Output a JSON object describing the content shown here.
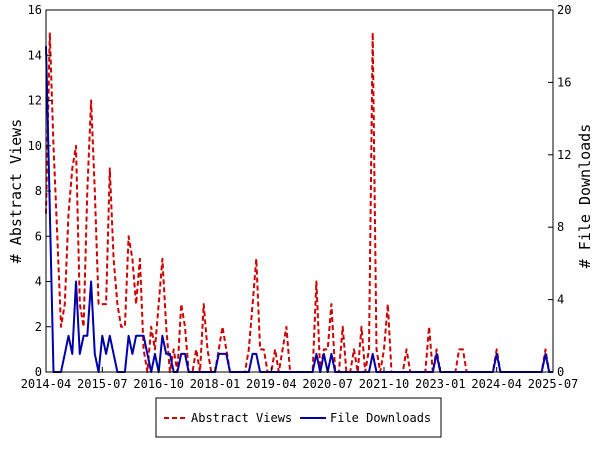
{
  "chart_data": {
    "type": "line",
    "ylabel_left": "# Abstract Views",
    "ylabel_right": "# File Downloads",
    "x_ticks": [
      "2014-04",
      "2015-07",
      "2016-10",
      "2018-01",
      "2019-04",
      "2020-07",
      "2021-10",
      "2023-01",
      "2024-04",
      "2025-07"
    ],
    "x_range": [
      "2014-04",
      "2025-07"
    ],
    "ylim_left": [
      0,
      16
    ],
    "ylim_right": [
      0,
      20
    ],
    "y_ticks_left": [
      0,
      2,
      4,
      6,
      8,
      10,
      12,
      14,
      16
    ],
    "y_ticks_right": [
      0,
      4,
      8,
      12,
      16,
      20
    ],
    "grid": false,
    "legend_position": "bottom-center",
    "series": [
      {
        "name": "Abstract Views",
        "axis": "left",
        "color": "#cc0000",
        "style": "dashed",
        "points": [
          [
            "2014-04",
            7
          ],
          [
            "2014-05",
            15
          ],
          [
            "2014-06",
            10
          ],
          [
            "2014-07",
            6
          ],
          [
            "2014-08",
            2
          ],
          [
            "2014-09",
            3
          ],
          [
            "2014-10",
            7
          ],
          [
            "2014-11",
            9
          ],
          [
            "2014-12",
            10
          ],
          [
            "2015-01",
            3
          ],
          [
            "2015-02",
            2
          ],
          [
            "2015-03",
            8
          ],
          [
            "2015-04",
            12
          ],
          [
            "2015-05",
            8
          ],
          [
            "2015-06",
            3
          ],
          [
            "2015-07",
            3
          ],
          [
            "2015-08",
            3
          ],
          [
            "2015-09",
            9
          ],
          [
            "2015-10",
            5
          ],
          [
            "2015-11",
            3
          ],
          [
            "2015-12",
            2
          ],
          [
            "2016-01",
            2
          ],
          [
            "2016-02",
            6
          ],
          [
            "2016-03",
            5
          ],
          [
            "2016-04",
            3
          ],
          [
            "2016-05",
            5
          ],
          [
            "2016-06",
            1
          ],
          [
            "2016-07",
            0
          ],
          [
            "2016-08",
            2
          ],
          [
            "2016-09",
            1
          ],
          [
            "2016-10",
            3
          ],
          [
            "2016-11",
            5
          ],
          [
            "2016-12",
            2
          ],
          [
            "2017-01",
            0
          ],
          [
            "2017-02",
            1
          ],
          [
            "2017-03",
            0
          ],
          [
            "2017-04",
            3
          ],
          [
            "2017-05",
            2
          ],
          [
            "2017-06",
            0
          ],
          [
            "2017-07",
            0
          ],
          [
            "2017-08",
            1
          ],
          [
            "2017-09",
            0
          ],
          [
            "2017-10",
            3
          ],
          [
            "2017-11",
            1
          ],
          [
            "2017-12",
            0
          ],
          [
            "2018-01",
            0
          ],
          [
            "2018-02",
            1
          ],
          [
            "2018-03",
            2
          ],
          [
            "2018-04",
            1
          ],
          [
            "2018-05",
            0
          ],
          [
            "2018-06",
            0
          ],
          [
            "2018-07",
            0
          ],
          [
            "2018-08",
            0
          ],
          [
            "2018-09",
            0
          ],
          [
            "2018-10",
            1
          ],
          [
            "2018-11",
            3
          ],
          [
            "2018-12",
            5
          ],
          [
            "2019-01",
            1
          ],
          [
            "2019-02",
            1
          ],
          [
            "2019-03",
            0
          ],
          [
            "2019-04",
            0
          ],
          [
            "2019-05",
            1
          ],
          [
            "2019-06",
            0
          ],
          [
            "2019-07",
            1
          ],
          [
            "2019-08",
            2
          ],
          [
            "2019-09",
            0
          ],
          [
            "2019-10",
            0
          ],
          [
            "2019-11",
            0
          ],
          [
            "2019-12",
            0
          ],
          [
            "2020-01",
            0
          ],
          [
            "2020-02",
            0
          ],
          [
            "2020-03",
            0
          ],
          [
            "2020-04",
            4
          ],
          [
            "2020-05",
            0
          ],
          [
            "2020-06",
            1
          ],
          [
            "2020-07",
            1
          ],
          [
            "2020-08",
            3
          ],
          [
            "2020-09",
            0
          ],
          [
            "2020-10",
            0
          ],
          [
            "2020-11",
            2
          ],
          [
            "2020-12",
            0
          ],
          [
            "2021-01",
            0
          ],
          [
            "2021-02",
            1
          ],
          [
            "2021-03",
            0
          ],
          [
            "2021-04",
            2
          ],
          [
            "2021-05",
            0
          ],
          [
            "2021-06",
            1
          ],
          [
            "2021-07",
            15
          ],
          [
            "2021-08",
            1
          ],
          [
            "2021-09",
            0
          ],
          [
            "2021-10",
            1
          ],
          [
            "2021-11",
            3
          ],
          [
            "2021-12",
            0
          ],
          [
            "2022-01",
            0
          ],
          [
            "2022-02",
            0
          ],
          [
            "2022-03",
            0
          ],
          [
            "2022-04",
            1
          ],
          [
            "2022-05",
            0
          ],
          [
            "2022-06",
            0
          ],
          [
            "2022-07",
            0
          ],
          [
            "2022-08",
            0
          ],
          [
            "2022-09",
            0
          ],
          [
            "2022-10",
            2
          ],
          [
            "2022-11",
            0
          ],
          [
            "2022-12",
            1
          ],
          [
            "2023-01",
            0
          ],
          [
            "2023-02",
            0
          ],
          [
            "2023-03",
            0
          ],
          [
            "2023-04",
            0
          ],
          [
            "2023-05",
            0
          ],
          [
            "2023-06",
            1
          ],
          [
            "2023-07",
            1
          ],
          [
            "2023-08",
            0
          ],
          [
            "2023-09",
            0
          ],
          [
            "2023-10",
            0
          ],
          [
            "2023-11",
            0
          ],
          [
            "2023-12",
            0
          ],
          [
            "2024-01",
            0
          ],
          [
            "2024-02",
            0
          ],
          [
            "2024-03",
            0
          ],
          [
            "2024-04",
            1
          ],
          [
            "2024-05",
            0
          ],
          [
            "2024-06",
            0
          ],
          [
            "2024-07",
            0
          ],
          [
            "2024-08",
            0
          ],
          [
            "2024-09",
            0
          ],
          [
            "2024-10",
            0
          ],
          [
            "2024-11",
            0
          ],
          [
            "2024-12",
            0
          ],
          [
            "2025-01",
            0
          ],
          [
            "2025-02",
            0
          ],
          [
            "2025-03",
            0
          ],
          [
            "2025-04",
            0
          ],
          [
            "2025-05",
            1
          ],
          [
            "2025-06",
            0
          ],
          [
            "2025-07",
            0
          ]
        ]
      },
      {
        "name": "File Downloads",
        "axis": "right",
        "color": "#0000aa",
        "style": "solid",
        "points": [
          [
            "2014-04",
            18
          ],
          [
            "2014-05",
            9
          ],
          [
            "2014-06",
            0
          ],
          [
            "2014-07",
            0
          ],
          [
            "2014-08",
            0
          ],
          [
            "2014-09",
            1
          ],
          [
            "2014-10",
            2
          ],
          [
            "2014-11",
            1
          ],
          [
            "2014-12",
            5
          ],
          [
            "2015-01",
            1
          ],
          [
            "2015-02",
            2
          ],
          [
            "2015-03",
            2
          ],
          [
            "2015-04",
            5
          ],
          [
            "2015-05",
            1
          ],
          [
            "2015-06",
            0
          ],
          [
            "2015-07",
            2
          ],
          [
            "2015-08",
            1
          ],
          [
            "2015-09",
            2
          ],
          [
            "2015-10",
            1
          ],
          [
            "2015-11",
            0
          ],
          [
            "2015-12",
            0
          ],
          [
            "2016-01",
            0
          ],
          [
            "2016-02",
            2
          ],
          [
            "2016-03",
            1
          ],
          [
            "2016-04",
            2
          ],
          [
            "2016-05",
            2
          ],
          [
            "2016-06",
            2
          ],
          [
            "2016-07",
            1
          ],
          [
            "2016-08",
            0
          ],
          [
            "2016-09",
            1
          ],
          [
            "2016-10",
            0
          ],
          [
            "2016-11",
            2
          ],
          [
            "2016-12",
            1
          ],
          [
            "2017-01",
            1
          ],
          [
            "2017-02",
            0
          ],
          [
            "2017-03",
            0
          ],
          [
            "2017-04",
            1
          ],
          [
            "2017-05",
            1
          ],
          [
            "2017-06",
            0
          ],
          [
            "2017-07",
            0
          ],
          [
            "2017-08",
            0
          ],
          [
            "2017-09",
            0
          ],
          [
            "2017-10",
            0
          ],
          [
            "2017-11",
            0
          ],
          [
            "2017-12",
            0
          ],
          [
            "2018-01",
            0
          ],
          [
            "2018-02",
            1
          ],
          [
            "2018-03",
            1
          ],
          [
            "2018-04",
            1
          ],
          [
            "2018-05",
            0
          ],
          [
            "2018-06",
            0
          ],
          [
            "2018-07",
            0
          ],
          [
            "2018-08",
            0
          ],
          [
            "2018-09",
            0
          ],
          [
            "2018-10",
            0
          ],
          [
            "2018-11",
            1
          ],
          [
            "2018-12",
            1
          ],
          [
            "2019-01",
            0
          ],
          [
            "2019-02",
            0
          ],
          [
            "2019-03",
            0
          ],
          [
            "2019-04",
            0
          ],
          [
            "2019-05",
            0
          ],
          [
            "2019-06",
            0
          ],
          [
            "2019-07",
            0
          ],
          [
            "2019-08",
            0
          ],
          [
            "2019-09",
            0
          ],
          [
            "2019-10",
            0
          ],
          [
            "2019-11",
            0
          ],
          [
            "2019-12",
            0
          ],
          [
            "2020-01",
            0
          ],
          [
            "2020-02",
            0
          ],
          [
            "2020-03",
            0
          ],
          [
            "2020-04",
            1
          ],
          [
            "2020-05",
            0
          ],
          [
            "2020-06",
            1
          ],
          [
            "2020-07",
            0
          ],
          [
            "2020-08",
            1
          ],
          [
            "2020-09",
            0
          ],
          [
            "2020-10",
            0
          ],
          [
            "2020-11",
            0
          ],
          [
            "2020-12",
            0
          ],
          [
            "2021-01",
            0
          ],
          [
            "2021-02",
            0
          ],
          [
            "2021-03",
            0
          ],
          [
            "2021-04",
            0
          ],
          [
            "2021-05",
            0
          ],
          [
            "2021-06",
            0
          ],
          [
            "2021-07",
            1
          ],
          [
            "2021-08",
            0
          ],
          [
            "2021-09",
            0
          ],
          [
            "2021-10",
            0
          ],
          [
            "2021-11",
            0
          ],
          [
            "2021-12",
            0
          ],
          [
            "2022-01",
            0
          ],
          [
            "2022-02",
            0
          ],
          [
            "2022-03",
            0
          ],
          [
            "2022-04",
            0
          ],
          [
            "2022-05",
            0
          ],
          [
            "2022-06",
            0
          ],
          [
            "2022-07",
            0
          ],
          [
            "2022-08",
            0
          ],
          [
            "2022-09",
            0
          ],
          [
            "2022-10",
            0
          ],
          [
            "2022-11",
            0
          ],
          [
            "2022-12",
            1
          ],
          [
            "2023-01",
            0
          ],
          [
            "2023-02",
            0
          ],
          [
            "2023-03",
            0
          ],
          [
            "2023-04",
            0
          ],
          [
            "2023-05",
            0
          ],
          [
            "2023-06",
            0
          ],
          [
            "2023-07",
            0
          ],
          [
            "2023-08",
            0
          ],
          [
            "2023-09",
            0
          ],
          [
            "2023-10",
            0
          ],
          [
            "2023-11",
            0
          ],
          [
            "2023-12",
            0
          ],
          [
            "2024-01",
            0
          ],
          [
            "2024-02",
            0
          ],
          [
            "2024-03",
            0
          ],
          [
            "2024-04",
            1
          ],
          [
            "2024-05",
            0
          ],
          [
            "2024-06",
            0
          ],
          [
            "2024-07",
            0
          ],
          [
            "2024-08",
            0
          ],
          [
            "2024-09",
            0
          ],
          [
            "2024-10",
            0
          ],
          [
            "2024-11",
            0
          ],
          [
            "2024-12",
            0
          ],
          [
            "2025-01",
            0
          ],
          [
            "2025-02",
            0
          ],
          [
            "2025-03",
            0
          ],
          [
            "2025-04",
            0
          ],
          [
            "2025-05",
            1
          ],
          [
            "2025-06",
            0
          ],
          [
            "2025-07",
            0
          ]
        ]
      }
    ]
  }
}
